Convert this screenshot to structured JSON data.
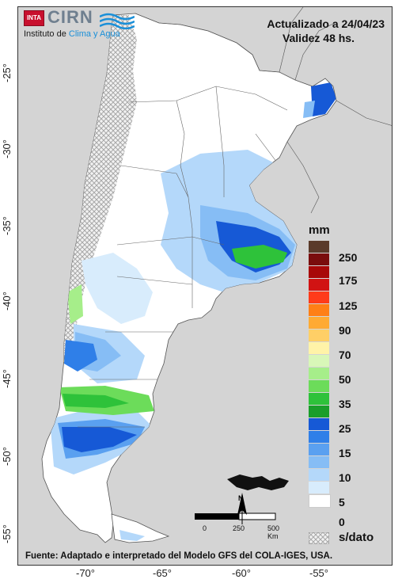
{
  "header": {
    "updated": "Actualizado a 24/04/23",
    "validity": "Validez 48 hs."
  },
  "logo": {
    "inta": "INTA",
    "cirn": "CIRN",
    "subtitle_prefix": "Instituto de ",
    "subtitle_accent": "Clima y Agua"
  },
  "axes": {
    "y_ticks": [
      "-25°",
      "-30°",
      "-35°",
      "-40°",
      "-45°",
      "-50°",
      "-55°"
    ],
    "x_ticks": [
      "-70°",
      "-65°",
      "-60°",
      "-55°"
    ]
  },
  "legend": {
    "unit": "mm",
    "labels": [
      "250",
      "175",
      "125",
      "90",
      "70",
      "50",
      "35",
      "25",
      "15",
      "10",
      "5",
      "0"
    ],
    "no_data": "s/dato",
    "colors": [
      "#5a3a2a",
      "#7a0d0d",
      "#a80808",
      "#d11313",
      "#ff3b1a",
      "#ff7f16",
      "#ffaa33",
      "#ffcf66",
      "#fff3a8",
      "#d8f7b8",
      "#a6ee8a",
      "#6cdc5a",
      "#2ec23a",
      "#1a9e2a",
      "#1659d6",
      "#2f7fe8",
      "#5aa0f0",
      "#86bdf5",
      "#b4d8fa",
      "#d8ecfc",
      "#ffffff"
    ]
  },
  "scale": {
    "labels": [
      "0",
      "250",
      "500 Km"
    ]
  },
  "north": "N",
  "source": "Fuente: Adaptado e interpretado del Modelo GFS del COLA-IGES, USA."
}
